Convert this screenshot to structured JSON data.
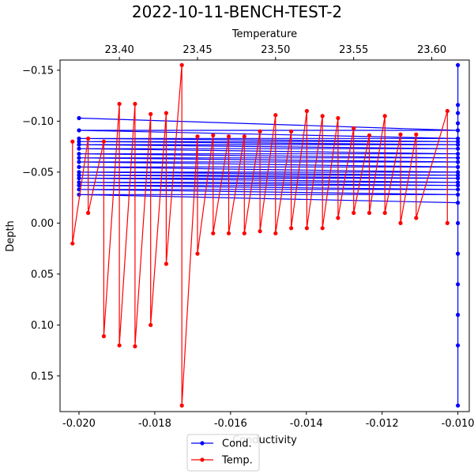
{
  "chart_data": {
    "type": "line",
    "title": "2022-10-11-BENCH-TEST-2",
    "xlabel_bottom": "Conductivity",
    "xlabel_top": "Temperature",
    "ylabel": "Depth",
    "xlim_bottom": [
      -0.0205,
      -0.0097
    ],
    "xlim_top": [
      23.362,
      23.624
    ],
    "ylim": [
      0.185,
      -0.16
    ],
    "y_inverted": true,
    "x_ticks_bottom": [
      "-0.020",
      "-0.018",
      "-0.016",
      "-0.014",
      "-0.012",
      "-0.010"
    ],
    "x_ticks_bottom_values": [
      -0.02,
      -0.018,
      -0.016,
      -0.014,
      -0.012,
      -0.01
    ],
    "x_ticks_top": [
      "23.40",
      "23.45",
      "23.50",
      "23.55",
      "23.60"
    ],
    "x_ticks_top_values": [
      23.4,
      23.45,
      23.5,
      23.55,
      23.6
    ],
    "y_ticks": [
      "−0.15",
      "−0.10",
      "−0.05",
      "0.00",
      "0.05",
      "0.10",
      "0.15"
    ],
    "y_ticks_values": [
      -0.15,
      -0.1,
      -0.05,
      0.0,
      0.05,
      0.1,
      0.15
    ],
    "grid": false,
    "legend_position": "bottom-center",
    "series": [
      {
        "name": "Cond.",
        "color": "#0000ff",
        "axis": "bottom",
        "x": [
          -0.02,
          -0.01,
          -0.02,
          -0.01,
          -0.02,
          -0.01,
          -0.02,
          -0.01,
          -0.02,
          -0.01,
          -0.02,
          -0.01,
          -0.02,
          -0.01,
          -0.02,
          -0.01,
          -0.02,
          -0.01,
          -0.02,
          -0.01,
          -0.02,
          -0.01,
          -0.02,
          -0.01,
          -0.02,
          -0.01,
          -0.02,
          -0.01,
          -0.02,
          -0.01,
          -0.02,
          -0.01,
          -0.02,
          -0.01,
          -0.01,
          -0.01,
          -0.01,
          -0.01,
          -0.01,
          -0.01,
          -0.01,
          -0.01,
          -0.01,
          -0.01
        ],
        "y": [
          -0.103,
          -0.091,
          -0.091,
          -0.083,
          -0.083,
          -0.08,
          -0.08,
          -0.077,
          -0.077,
          -0.073,
          -0.073,
          -0.068,
          -0.068,
          -0.064,
          -0.064,
          -0.06,
          -0.06,
          -0.055,
          -0.055,
          -0.05,
          -0.05,
          -0.047,
          -0.047,
          -0.044,
          -0.044,
          -0.04,
          -0.04,
          -0.037,
          -0.037,
          -0.033,
          -0.033,
          -0.028,
          -0.028,
          -0.02,
          -0.155,
          -0.116,
          -0.108,
          -0.098,
          0.0,
          0.03,
          0.06,
          0.09,
          0.12,
          0.179
        ]
      },
      {
        "name": "Temp.",
        "color": "#ff0000",
        "axis": "top",
        "x": [
          23.37,
          23.37,
          23.38,
          23.38,
          23.39,
          23.39,
          23.4,
          23.4,
          23.41,
          23.41,
          23.42,
          23.42,
          23.43,
          23.43,
          23.44,
          23.44,
          23.45,
          23.45,
          23.46,
          23.46,
          23.47,
          23.47,
          23.48,
          23.48,
          23.49,
          23.49,
          23.5,
          23.5,
          23.51,
          23.51,
          23.52,
          23.52,
          23.53,
          23.53,
          23.54,
          23.54,
          23.55,
          23.55,
          23.56,
          23.56,
          23.57,
          23.57,
          23.58,
          23.58,
          23.59,
          23.59,
          23.61,
          23.61
        ],
        "y": [
          -0.08,
          0.02,
          -0.083,
          -0.01,
          -0.08,
          0.111,
          -0.117,
          0.12,
          -0.117,
          0.121,
          -0.107,
          0.1,
          -0.108,
          0.04,
          -0.155,
          0.179,
          -0.085,
          0.03,
          -0.086,
          0.01,
          -0.085,
          0.01,
          -0.085,
          0.01,
          -0.09,
          0.008,
          -0.106,
          0.01,
          -0.09,
          0.005,
          -0.11,
          0.005,
          -0.105,
          0.005,
          -0.103,
          -0.005,
          -0.093,
          -0.01,
          -0.086,
          -0.01,
          -0.105,
          -0.01,
          -0.087,
          0.0,
          -0.087,
          -0.005,
          -0.11,
          0.0
        ]
      }
    ]
  }
}
